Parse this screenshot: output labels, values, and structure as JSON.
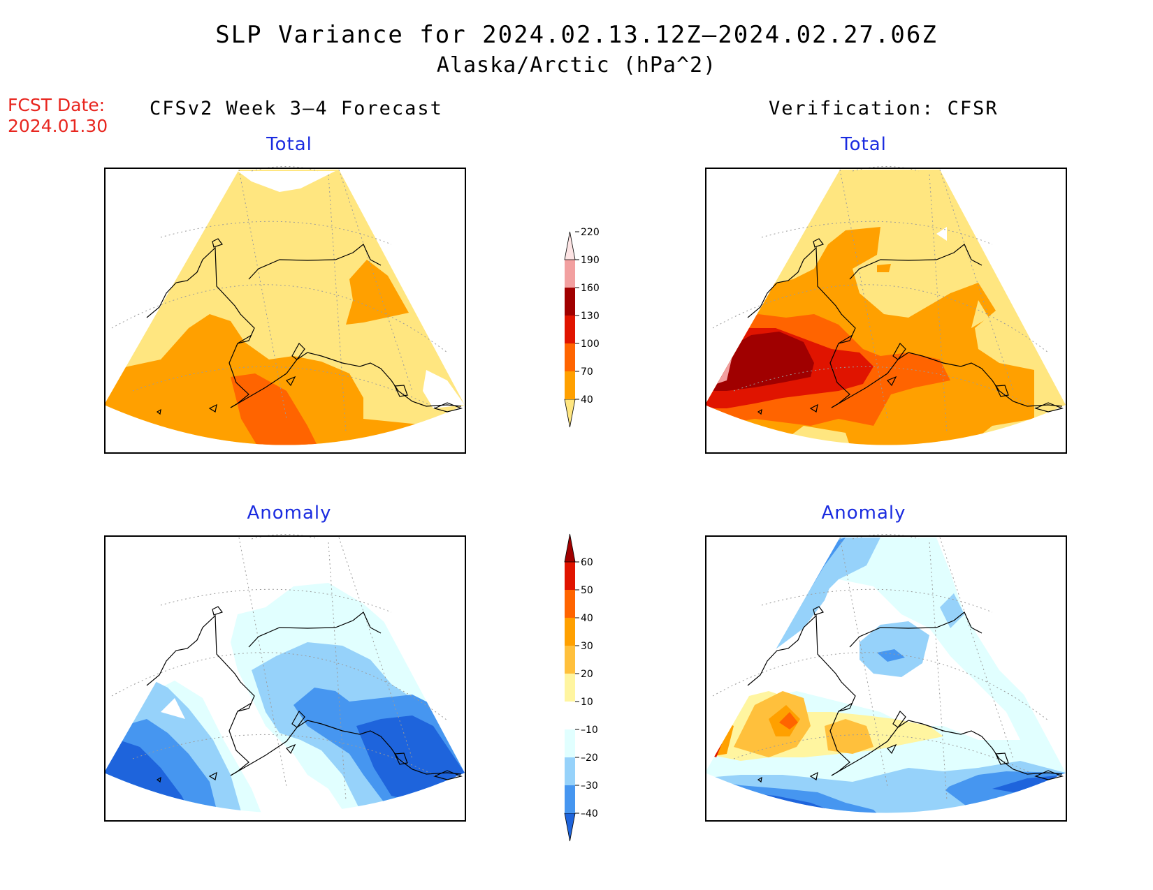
{
  "title": "SLP Variance for 2024.02.13.12Z–2024.02.27.06Z",
  "subtitle": "Alaska/Arctic (hPa^2)",
  "fcst_label": "FCST Date:",
  "fcst_date": "2024.01.30",
  "left_heading": "CFSv2 Week 3–4 Forecast",
  "right_heading": "Verification: CFSR",
  "panel_titles": {
    "forecast_total": "Total",
    "verification_total": "Total",
    "forecast_anomaly": "Anomaly",
    "verification_anomaly": "Anomaly"
  },
  "total_colorbar": {
    "levels": [
      "40",
      "70",
      "100",
      "130",
      "160",
      "190",
      "220"
    ],
    "colors": [
      "#ffe680",
      "#ffa000",
      "#ff6400",
      "#e01400",
      "#a00000",
      "#f2a0a0",
      "#fde4e4"
    ]
  },
  "anomaly_colorbar": {
    "levels": [
      "–40",
      "–30",
      "–20",
      "–10",
      "10",
      "20",
      "30",
      "40",
      "50",
      "60"
    ],
    "colors": [
      "#1e64dc",
      "#4696f0",
      "#96d2fa",
      "#e1ffff",
      "#ffffff",
      "#fff5a0",
      "#ffc03c",
      "#ffa000",
      "#ff6400",
      "#e01400",
      "#a00000"
    ]
  }
}
